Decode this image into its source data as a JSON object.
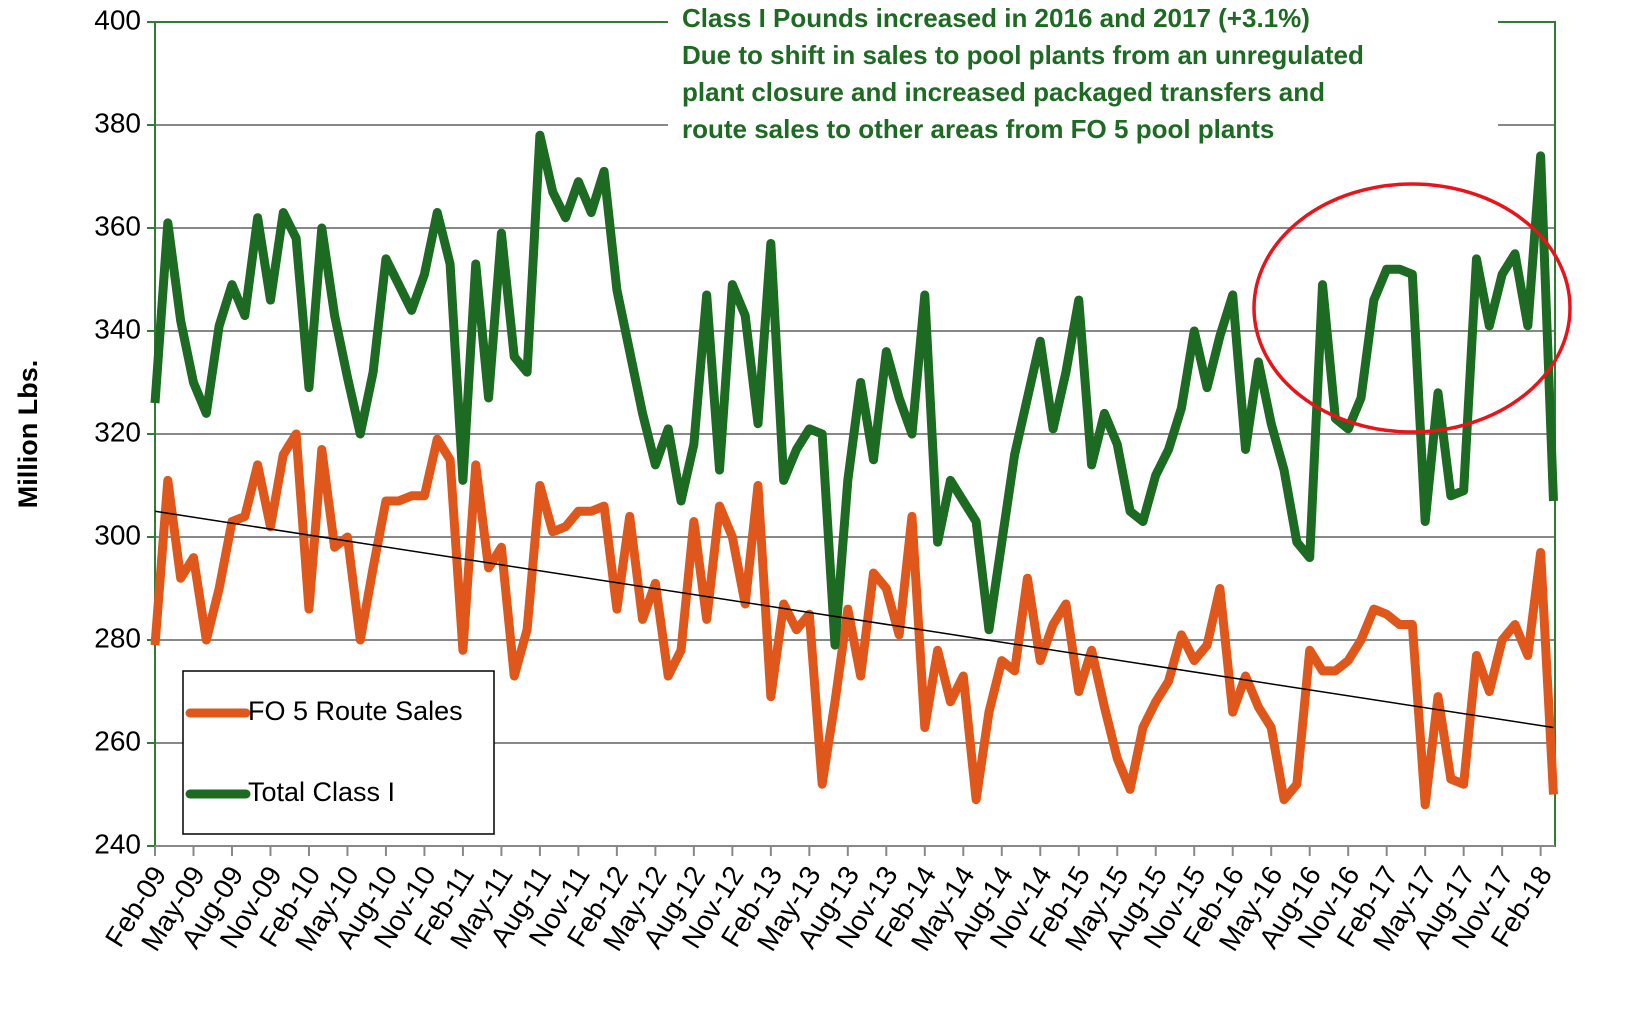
{
  "chart_data": {
    "type": "line",
    "y_label": "Million Lbs.",
    "annotation": [
      "Class I Pounds increased in 2016 and 2017 (+3.1%)",
      "Due to shift in sales to pool plants from an unregulated",
      "plant closure and increased  packaged transfers and",
      "route sales to other areas from FO 5 pool plants"
    ],
    "categories": [
      "Feb-09",
      null,
      null,
      "May-09",
      null,
      null,
      "Aug-09",
      null,
      null,
      "Nov-09",
      null,
      null,
      "Feb-10",
      null,
      null,
      "May-10",
      null,
      null,
      "Aug-10",
      null,
      null,
      "Nov-10",
      null,
      null,
      "Feb-11",
      null,
      null,
      "May-11",
      null,
      null,
      "Aug-11",
      null,
      null,
      "Nov-11",
      null,
      null,
      "Feb-12",
      null,
      null,
      "May-12",
      null,
      null,
      "Aug-12",
      null,
      null,
      "Nov-12",
      null,
      null,
      "Feb-13",
      null,
      null,
      "May-13",
      null,
      null,
      "Aug-13",
      null,
      null,
      "Nov-13",
      null,
      null,
      "Feb-14",
      null,
      null,
      "May-14",
      null,
      null,
      "Aug-14",
      null,
      null,
      "Nov-14",
      null,
      null,
      "Feb-15",
      null,
      null,
      "May-15",
      null,
      null,
      "Aug-15",
      null,
      null,
      "Nov-15",
      null,
      null,
      "Feb-16",
      null,
      null,
      "May-16",
      null,
      null,
      "Aug-16",
      null,
      null,
      "Nov-16",
      null,
      null,
      "Feb-17",
      null,
      null,
      "May-17",
      null,
      null,
      "Aug-17",
      null,
      null,
      "Nov-17",
      null,
      null,
      "Feb-18",
      null
    ],
    "series": [
      {
        "name": "FO 5 Route Sales",
        "color": "#e0571c",
        "values": [
          279,
          311,
          292,
          296,
          280,
          290,
          303,
          304,
          314,
          302,
          316,
          320,
          286,
          317,
          298,
          300,
          280,
          294,
          307,
          307,
          308,
          308,
          319,
          315,
          278,
          314,
          294,
          298,
          273,
          282,
          310,
          301,
          302,
          305,
          305,
          306,
          286,
          304,
          284,
          291,
          273,
          278,
          303,
          284,
          306,
          300,
          287,
          310,
          269,
          287,
          282,
          285,
          252,
          268,
          286,
          273,
          293,
          290,
          281,
          304,
          263,
          278,
          268,
          273,
          249,
          266,
          276,
          274,
          292,
          276,
          283,
          287,
          270,
          278,
          267,
          257,
          251,
          263,
          268,
          272,
          281,
          276,
          279,
          290,
          266,
          273,
          267,
          263,
          249,
          252,
          278,
          274,
          274,
          276,
          280,
          286,
          285,
          283,
          283,
          248,
          269,
          253,
          252,
          277,
          270,
          280,
          283,
          277,
          297,
          250
        ]
      },
      {
        "name": "Total Class I",
        "color": "#1d6a22",
        "values": [
          326,
          361,
          342,
          330,
          324,
          341,
          349,
          343,
          362,
          346,
          363,
          358,
          329,
          360,
          343,
          331,
          320,
          332,
          354,
          349,
          344,
          351,
          363,
          353,
          311,
          353,
          327,
          359,
          335,
          332,
          378,
          367,
          362,
          369,
          363,
          371,
          348,
          336,
          324,
          314,
          321,
          307,
          318,
          347,
          313,
          349,
          343,
          322,
          357,
          311,
          317,
          321,
          320,
          279,
          311,
          330,
          315,
          336,
          327,
          320,
          347,
          299,
          311,
          307,
          303,
          282,
          299,
          316,
          327,
          338,
          321,
          332,
          346,
          314,
          324,
          318,
          305,
          303,
          312,
          317,
          325,
          340,
          329,
          339,
          347,
          317,
          334,
          322,
          313,
          299,
          296,
          349,
          323,
          321,
          327,
          346,
          352,
          352,
          351,
          303,
          328,
          308,
          309,
          354,
          341,
          351,
          355,
          341,
          374,
          307
        ]
      }
    ],
    "trendline": {
      "color": "#000000",
      "values": [
        305,
        263
      ]
    },
    "ylim": [
      240,
      400
    ],
    "yticks": [
      240,
      260,
      280,
      300,
      320,
      340,
      360,
      380,
      400
    ],
    "grid": true,
    "legend": "lower left"
  }
}
